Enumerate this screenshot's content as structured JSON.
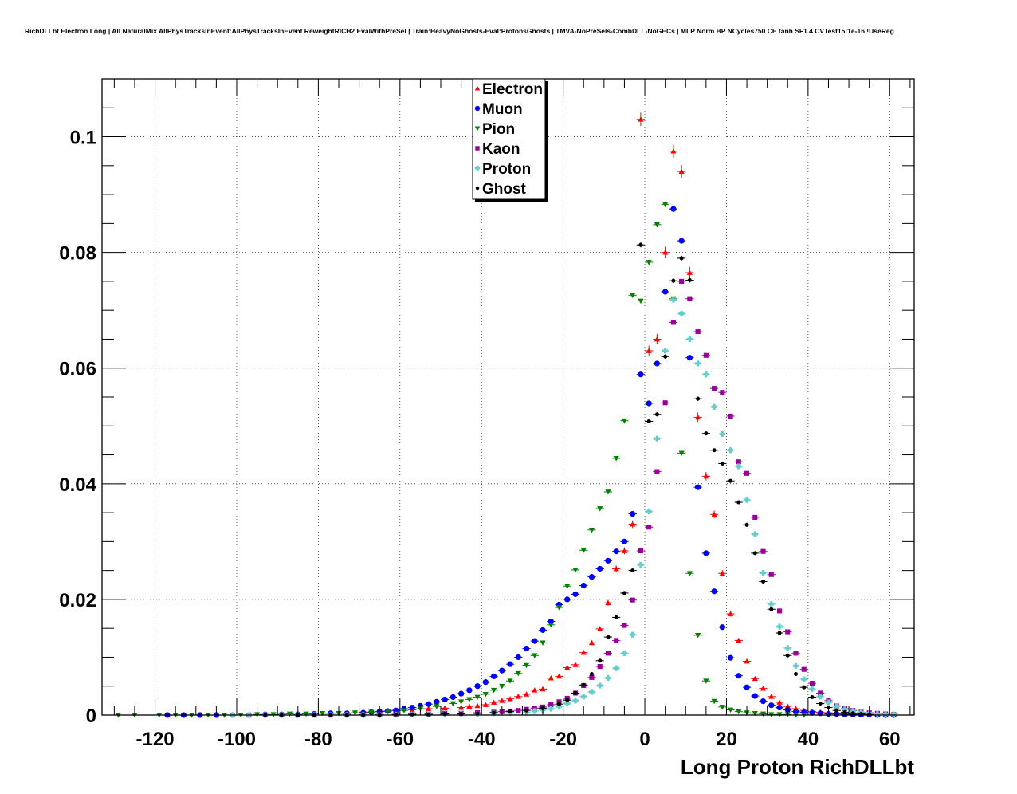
{
  "chart_data": {
    "type": "scatter",
    "title": "RichDLLbt Electron Long | All NaturalMix AllPhysTracksInEvent:AllPhysTracksInEvent ReweightRICH2 EvalWithPreSel | Train:HeavyNoGhosts-Eval:ProtonsGhosts | TMVA-NoPreSels-CombDLL-NoGECs | MLP Norm BP NCycles750 CE tanh SF1.4 CVTest15:1e-16 !UseReg",
    "xlabel": "Long Proton RichDLLbt",
    "ylabel": "",
    "xlim": [
      -133,
      66
    ],
    "ylim": [
      0,
      0.11
    ],
    "xticks": [
      -120,
      -100,
      -80,
      -60,
      -40,
      -20,
      0,
      20,
      40,
      60
    ],
    "xtick_labels": [
      "-120",
      "-100",
      "-80",
      "-60",
      "-40",
      "-20",
      "0",
      "20",
      "40",
      "60"
    ],
    "yticks": [
      0,
      0.02,
      0.04,
      0.06,
      0.08,
      0.1
    ],
    "ytick_labels": [
      "0",
      "0.02",
      "0.04",
      "0.06",
      "0.08",
      "0.1"
    ],
    "grid": true,
    "legend_position": "top-center",
    "series": [
      {
        "name": "Electron",
        "color": "#ff0000",
        "marker": "triangle-up",
        "x": [
          -117,
          -113,
          -109,
          -105,
          -101,
          -97,
          -93,
          -89,
          -85,
          -81,
          -77,
          -73,
          -69,
          -65,
          -61,
          -57,
          -53,
          -49,
          -45,
          -43,
          -41,
          -39,
          -37,
          -35,
          -33,
          -31,
          -29,
          -27,
          -25,
          -23,
          -21,
          -19,
          -17,
          -15,
          -13,
          -11,
          -9,
          -7,
          -5,
          -3,
          -1,
          1,
          3,
          5,
          7,
          9,
          11,
          13,
          15,
          17,
          19,
          21,
          23,
          25,
          27,
          29,
          31,
          33,
          35,
          37,
          39,
          41,
          43,
          45,
          47,
          49,
          51,
          53
        ],
        "y": [
          0,
          0,
          0,
          0,
          0,
          0,
          0,
          0,
          0,
          0,
          0,
          0.0003,
          0.0005,
          0.0006,
          0.0008,
          0.0009,
          0.0011,
          0.0012,
          0.0013,
          0.0015,
          0.0016,
          0.0018,
          0.0022,
          0.0025,
          0.0028,
          0.0032,
          0.0036,
          0.0043,
          0.0045,
          0.0064,
          0.0067,
          0.0082,
          0.0087,
          0.0108,
          0.0125,
          0.0149,
          0.0194,
          0.0253,
          0.0284,
          0.033,
          0.103,
          0.063,
          0.065,
          0.08,
          0.0975,
          0.094,
          0.0765,
          0.0515,
          0.0413,
          0.0347,
          0.0245,
          0.0175,
          0.0129,
          0.0093,
          0.0063,
          0.0046,
          0.0032,
          0.0022,
          0.0015,
          0.0011,
          0.0008,
          0.0006,
          0.0005,
          0.0004,
          0.0003,
          0.0002,
          0.0002,
          0.0001
        ]
      },
      {
        "name": "Muon",
        "color": "#0000ff",
        "marker": "circle",
        "x": [
          -117,
          -113,
          -109,
          -105,
          -101,
          -97,
          -93,
          -89,
          -85,
          -81,
          -77,
          -73,
          -69,
          -67,
          -65,
          -63,
          -61,
          -59,
          -57,
          -55,
          -53,
          -51,
          -49,
          -47,
          -45,
          -43,
          -41,
          -39,
          -37,
          -35,
          -33,
          -31,
          -29,
          -27,
          -25,
          -23,
          -21,
          -19,
          -17,
          -15,
          -13,
          -11,
          -9,
          -7,
          -5,
          -3,
          -1,
          1,
          3,
          5,
          7,
          9,
          11,
          13,
          15,
          17,
          19,
          21,
          23,
          25,
          27,
          29,
          31,
          33,
          35,
          37,
          39,
          41,
          43,
          45,
          47,
          49,
          51,
          53,
          55,
          57,
          59,
          61
        ],
        "y": [
          0,
          0,
          0,
          0,
          0,
          0,
          0.0001,
          0.0001,
          0.0001,
          0.0002,
          0.0003,
          0.0003,
          0.0004,
          0.0005,
          0.0006,
          0.0007,
          0.0008,
          0.0011,
          0.0013,
          0.0016,
          0.0019,
          0.0023,
          0.0027,
          0.0031,
          0.0037,
          0.0043,
          0.005,
          0.0057,
          0.0067,
          0.0077,
          0.0088,
          0.01,
          0.0115,
          0.0128,
          0.0147,
          0.0162,
          0.0191,
          0.02,
          0.0209,
          0.0224,
          0.0239,
          0.0253,
          0.0267,
          0.0283,
          0.03,
          0.0348,
          0.0589,
          0.0539,
          0.0608,
          0.0732,
          0.0875,
          0.082,
          0.0618,
          0.0394,
          0.028,
          0.0214,
          0.0152,
          0.0099,
          0.0068,
          0.0048,
          0.0033,
          0.0024,
          0.0017,
          0.0013,
          0.0009,
          0.0006,
          0.0005,
          0.0004,
          0.0003,
          0.0002,
          0.0002,
          0.0001,
          0.0001,
          0.0001,
          0.0001,
          0,
          0,
          0
        ]
      },
      {
        "name": "Pion",
        "color": "#008000",
        "marker": "triangle-down",
        "x": [
          -129,
          -125,
          -119,
          -115,
          -111,
          -107,
          -103,
          -99,
          -95,
          -91,
          -87,
          -83,
          -79,
          -75,
          -71,
          -67,
          -63,
          -59,
          -55,
          -51,
          -47,
          -45,
          -43,
          -41,
          -39,
          -37,
          -35,
          -33,
          -31,
          -29,
          -27,
          -25,
          -23,
          -21,
          -19,
          -17,
          -15,
          -13,
          -11,
          -9,
          -7,
          -5,
          -3,
          -1,
          1,
          3,
          5,
          7,
          9,
          11,
          13,
          15,
          17,
          19,
          21,
          23,
          25,
          27,
          29,
          31,
          33,
          35,
          37,
          39
        ],
        "y": [
          0,
          0,
          0,
          0,
          0,
          0,
          0,
          0,
          0.0001,
          0.0001,
          0.0002,
          0.0002,
          0.0003,
          0.0003,
          0.0004,
          0.0005,
          0.0006,
          0.0008,
          0.0011,
          0.0015,
          0.002,
          0.0023,
          0.0027,
          0.0031,
          0.0036,
          0.0043,
          0.005,
          0.0059,
          0.0072,
          0.0086,
          0.0103,
          0.0125,
          0.0156,
          0.0186,
          0.0223,
          0.0251,
          0.0285,
          0.032,
          0.0357,
          0.0386,
          0.0444,
          0.0509,
          0.0726,
          0.0716,
          0.0783,
          0.0848,
          0.0883,
          0.072,
          0.0453,
          0.0245,
          0.0138,
          0.0059,
          0.0024,
          0.0014,
          0.0009,
          0.0006,
          0.0004,
          0.0003,
          0.0002,
          0.0001,
          0.0001,
          0.0001,
          0,
          0
        ]
      },
      {
        "name": "Kaon",
        "color": "#990099",
        "marker": "square",
        "x": [
          -101,
          -97,
          -93,
          -89,
          -85,
          -81,
          -77,
          -73,
          -69,
          -65,
          -61,
          -57,
          -53,
          -49,
          -45,
          -41,
          -37,
          -35,
          -33,
          -31,
          -29,
          -27,
          -25,
          -23,
          -21,
          -19,
          -17,
          -15,
          -13,
          -11,
          -9,
          -7,
          -5,
          -3,
          -1,
          1,
          3,
          5,
          7,
          9,
          11,
          13,
          15,
          17,
          19,
          21,
          23,
          25,
          27,
          29,
          31,
          33,
          35,
          37,
          39,
          41,
          43,
          45,
          47,
          49,
          51,
          53,
          55,
          57,
          59,
          61
        ],
        "y": [
          0,
          0,
          0,
          0,
          0,
          0,
          0,
          0.0001,
          0.0001,
          0.0001,
          0.0001,
          0.0002,
          0.0002,
          0.0003,
          0.0003,
          0.0004,
          0.0005,
          0.0006,
          0.0007,
          0.0008,
          0.001,
          0.0012,
          0.0014,
          0.0018,
          0.0023,
          0.0029,
          0.0038,
          0.0051,
          0.0065,
          0.0084,
          0.0107,
          0.0129,
          0.0155,
          0.0199,
          0.0284,
          0.0325,
          0.0421,
          0.054,
          0.0679,
          0.075,
          0.072,
          0.0663,
          0.0622,
          0.0565,
          0.0558,
          0.0517,
          0.0438,
          0.0418,
          0.0342,
          0.0283,
          0.0243,
          0.018,
          0.0144,
          0.0107,
          0.0079,
          0.0055,
          0.0038,
          0.0025,
          0.0016,
          0.0011,
          0.0008,
          0.0005,
          0.0004,
          0.0003,
          0.0002,
          0.0001
        ]
      },
      {
        "name": "Proton",
        "color": "#66cccc",
        "marker": "plus",
        "x": [
          -101,
          -97,
          -93,
          -89,
          -85,
          -81,
          -77,
          -73,
          -69,
          -65,
          -61,
          -57,
          -53,
          -49,
          -45,
          -41,
          -37,
          -33,
          -29,
          -27,
          -25,
          -23,
          -21,
          -19,
          -17,
          -15,
          -13,
          -11,
          -9,
          -7,
          -5,
          -3,
          -1,
          1,
          3,
          5,
          7,
          9,
          11,
          13,
          15,
          17,
          19,
          21,
          23,
          25,
          27,
          29,
          31,
          33,
          35,
          37,
          39,
          41,
          43,
          45,
          47,
          49,
          51,
          53,
          55,
          57,
          59,
          61
        ],
        "y": [
          0,
          0,
          0,
          0,
          0,
          0,
          0,
          0,
          0,
          0,
          0.0001,
          0.0001,
          0.0001,
          0.0001,
          0.0002,
          0.0002,
          0.0003,
          0.0004,
          0.0005,
          0.0007,
          0.0009,
          0.0011,
          0.0015,
          0.002,
          0.0025,
          0.0032,
          0.004,
          0.0051,
          0.0064,
          0.0081,
          0.0107,
          0.0139,
          0.026,
          0.0352,
          0.0478,
          0.063,
          0.0718,
          0.0694,
          0.065,
          0.0608,
          0.0589,
          0.0533,
          0.0486,
          0.0458,
          0.043,
          0.0372,
          0.0313,
          0.0246,
          0.0192,
          0.0153,
          0.0116,
          0.0085,
          0.0062,
          0.0045,
          0.0032,
          0.0022,
          0.0015,
          0.001,
          0.0007,
          0.0005,
          0.0003,
          0.0002,
          0.0001,
          0.0001
        ]
      },
      {
        "name": "Ghost",
        "color": "#000000",
        "marker": "dot",
        "x": [
          -93,
          -89,
          -85,
          -81,
          -77,
          -73,
          -69,
          -65,
          -61,
          -57,
          -53,
          -49,
          -45,
          -41,
          -37,
          -33,
          -29,
          -25,
          -21,
          -19,
          -17,
          -15,
          -13,
          -11,
          -9,
          -7,
          -5,
          -3,
          -1,
          1,
          3,
          5,
          7,
          9,
          11,
          13,
          15,
          17,
          19,
          21,
          23,
          25,
          27,
          29,
          31,
          33,
          35,
          37,
          39,
          41,
          43,
          45,
          47,
          49,
          51,
          53,
          55
        ],
        "y": [
          0,
          0,
          0,
          0,
          0,
          0,
          0,
          0,
          0.0001,
          0.0001,
          0.0001,
          0.0002,
          0.0002,
          0.0003,
          0.0004,
          0.0006,
          0.0008,
          0.0012,
          0.0019,
          0.0026,
          0.0038,
          0.0052,
          0.0071,
          0.0094,
          0.0135,
          0.0169,
          0.0211,
          0.025,
          0.0813,
          0.0508,
          0.052,
          0.062,
          0.0751,
          0.079,
          0.0752,
          0.0547,
          0.0487,
          0.0458,
          0.0435,
          0.0405,
          0.0368,
          0.0329,
          0.028,
          0.0231,
          0.0183,
          0.0142,
          0.0103,
          0.0071,
          0.0048,
          0.0031,
          0.002,
          0.0013,
          0.0008,
          0.0005,
          0.0003,
          0.0002,
          0.0001
        ]
      }
    ]
  }
}
